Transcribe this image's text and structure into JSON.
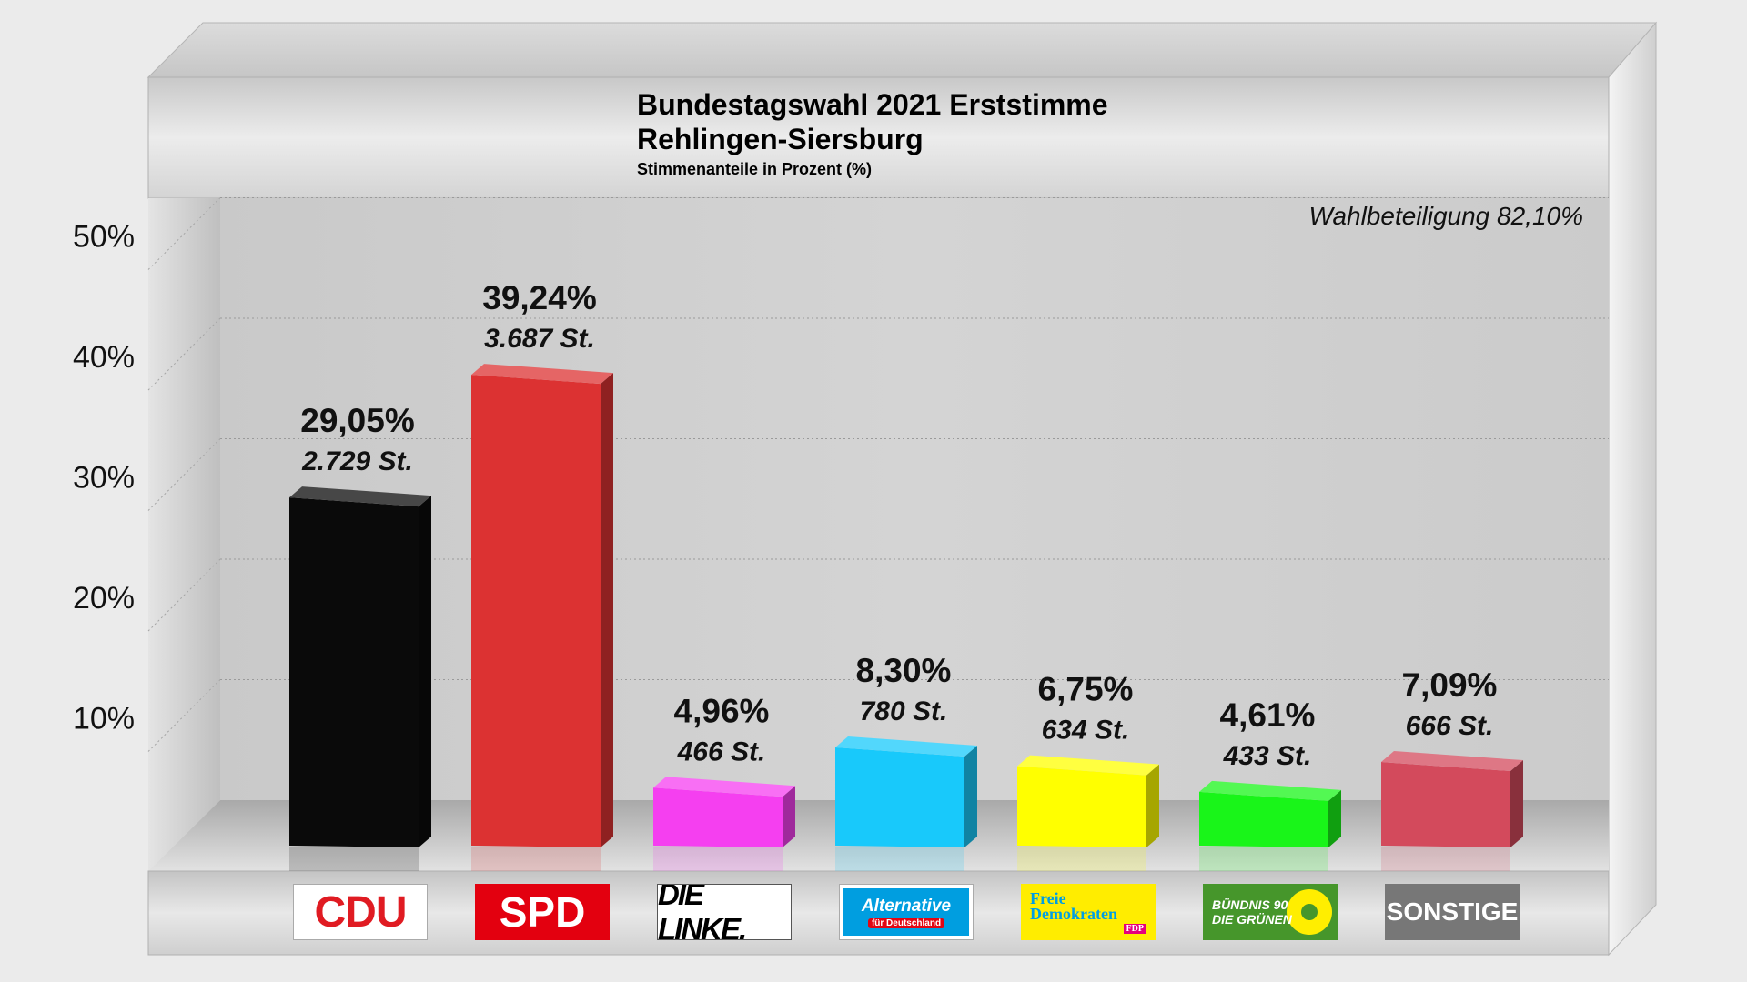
{
  "chart_data": {
    "type": "bar",
    "title": "Bundestagswahl 2021 Erststimme",
    "subtitle": "Rehlingen-Siersburg",
    "note": "Stimmenanteile in Prozent (%)",
    "turnout": "Wahlbeteiligung 82,10%",
    "ylim": [
      0,
      50
    ],
    "yticks": [
      "10%",
      "20%",
      "30%",
      "40%",
      "50%"
    ],
    "ytick_values": [
      10,
      20,
      30,
      40,
      50
    ],
    "categories": [
      "CDU",
      "SPD",
      "DIE LINKE.",
      "Alternative für Deutschland",
      "Freie Demokraten FDP",
      "BÜNDNIS 90 DIE GRÜNEN",
      "SONSTIGE"
    ],
    "values": [
      29.05,
      39.24,
      4.96,
      8.3,
      6.75,
      4.61,
      7.09
    ],
    "value_labels": [
      "29,05%",
      "39,24%",
      "4,96%",
      "8,30%",
      "6,75%",
      "4,61%",
      "7,09%"
    ],
    "vote_labels": [
      "2.729 St.",
      "3.687 St.",
      "466 St.",
      "780 St.",
      "634 St.",
      "433 St.",
      "666 St."
    ],
    "colors": [
      "#0a0a0a",
      "#dc3232",
      "#f53ff0",
      "#18c9fb",
      "#ffff00",
      "#19f519",
      "#d34a5c"
    ],
    "grid": true,
    "legend": "none"
  },
  "logos": {
    "cdu": "CDU",
    "spd": "SPD",
    "linke": "DIE LINKE.",
    "afd_main": "Alternative",
    "afd_sub": "für Deutschland",
    "fdp_line1": "Freie",
    "fdp_line2": "Demokraten",
    "fdp_tag": "FDP",
    "gruene_line1": "BÜNDNIS 90",
    "gruene_line2": "DIE GRÜNEN",
    "sonstige": "SONSTIGE"
  }
}
